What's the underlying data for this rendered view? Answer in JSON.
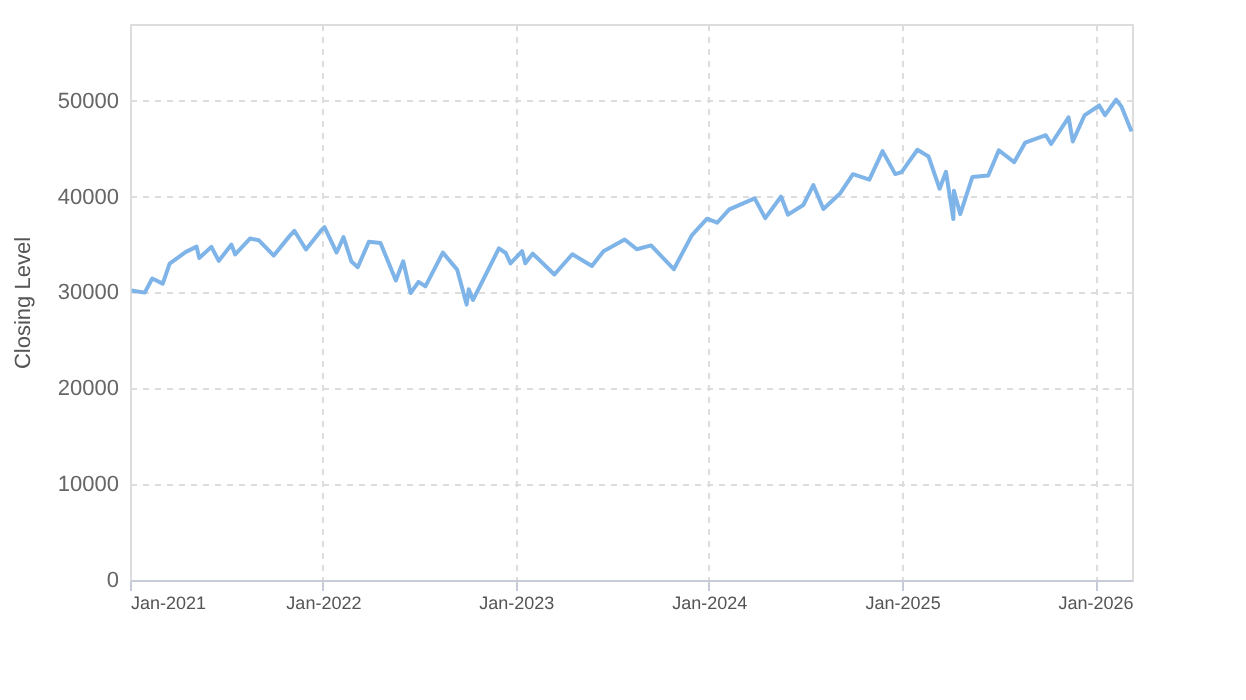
{
  "chart_data": {
    "type": "line",
    "ylabel": "Closing Level",
    "xlim": [
      "2021-01-01",
      "2026-03-12"
    ],
    "ylim": [
      0,
      58000
    ],
    "yticks": [
      0,
      10000,
      20000,
      30000,
      40000,
      50000
    ],
    "xticks": [
      {
        "value": "2021-01-01",
        "label": "Jan-2021"
      },
      {
        "value": "2022-01-01",
        "label": "Jan-2022"
      },
      {
        "value": "2023-01-01",
        "label": "Jan-2023"
      },
      {
        "value": "2024-01-01",
        "label": "Jan-2024"
      },
      {
        "value": "2025-01-01",
        "label": "Jan-2025"
      },
      {
        "value": "2026-01-01",
        "label": "Jan-2026"
      }
    ],
    "grid": true,
    "marker": "none",
    "line_style": "solid",
    "x": [
      "2021-01-04",
      "2021-01-29",
      "2021-02-12",
      "2021-03-04",
      "2021-03-17",
      "2021-04-16",
      "2021-05-07",
      "2021-05-12",
      "2021-06-04",
      "2021-06-18",
      "2021-07-12",
      "2021-07-19",
      "2021-08-16",
      "2021-09-02",
      "2021-09-30",
      "2021-10-29",
      "2021-11-08",
      "2021-11-30",
      "2021-12-29",
      "2022-01-04",
      "2022-01-27",
      "2022-02-09",
      "2022-02-24",
      "2022-03-08",
      "2022-03-29",
      "2022-04-20",
      "2022-05-19",
      "2022-06-02",
      "2022-06-16",
      "2022-07-01",
      "2022-07-14",
      "2022-08-16",
      "2022-09-12",
      "2022-09-30",
      "2022-10-04",
      "2022-10-12",
      "2022-11-30",
      "2022-12-13",
      "2022-12-22",
      "2023-01-13",
      "2023-01-19",
      "2023-02-02",
      "2023-03-15",
      "2023-04-18",
      "2023-05-25",
      "2023-06-16",
      "2023-07-26",
      "2023-08-18",
      "2023-09-14",
      "2023-10-27",
      "2023-11-30",
      "2023-12-29",
      "2024-01-17",
      "2024-02-09",
      "2024-03-28",
      "2024-04-17",
      "2024-05-17",
      "2024-05-30",
      "2024-06-28",
      "2024-07-17",
      "2024-08-05",
      "2024-09-06",
      "2024-09-30",
      "2024-10-31",
      "2024-11-25",
      "2024-12-19",
      "2024-12-31",
      "2025-01-30",
      "2025-02-20",
      "2025-03-13",
      "2025-03-25",
      "2025-04-08",
      "2025-04-09",
      "2025-04-21",
      "2025-05-14",
      "2025-06-13",
      "2025-07-03",
      "2025-08-01",
      "2025-08-22",
      "2025-09-30",
      "2025-10-10",
      "2025-11-12",
      "2025-11-20",
      "2025-12-12",
      "2026-01-09",
      "2026-01-20",
      "2026-02-10",
      "2026-02-20",
      "2026-03-06",
      "2026-03-11"
    ],
    "series": [
      {
        "color": "#7fb4e8",
        "values": [
          30200,
          29980,
          31450,
          30920,
          33000,
          34200,
          34780,
          33590,
          34750,
          33290,
          34990,
          33960,
          35620,
          35440,
          33840,
          35820,
          36430,
          34480,
          36490,
          36800,
          34160,
          35770,
          33220,
          32630,
          35290,
          35160,
          31250,
          33250,
          29930,
          31100,
          30630,
          34150,
          32380,
          28730,
          30320,
          29210,
          34590,
          34110,
          33030,
          34300,
          33040,
          34050,
          31870,
          33980,
          32760,
          34300,
          35520,
          34500,
          34900,
          32420,
          35950,
          37690,
          37270,
          38670,
          39810,
          37750,
          40000,
          38110,
          39120,
          41200,
          38700,
          40350,
          42330,
          41760,
          44740,
          42340,
          42540,
          44880,
          44180,
          40810,
          42580,
          37650,
          40610,
          38170,
          42050,
          42200,
          44830,
          43590,
          45630,
          46400,
          45480,
          48250,
          45750,
          48460,
          49500,
          48490,
          50100,
          49400,
          47500,
          46800
        ]
      }
    ]
  }
}
